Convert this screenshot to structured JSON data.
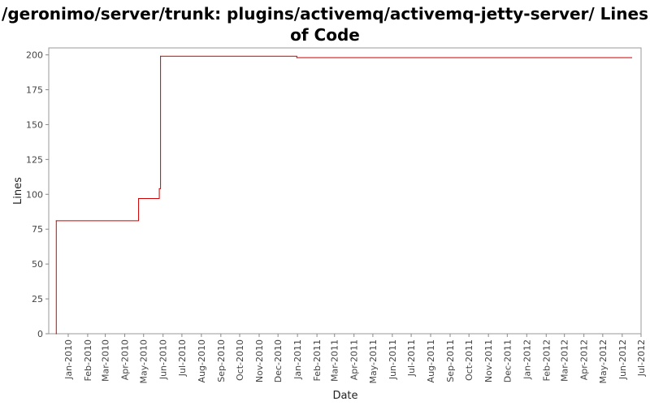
{
  "chart_data": {
    "type": "line",
    "line_style": "step",
    "title": "/geronimo/server/trunk: plugins/activemq/activemq-jetty-server/ Lines of Code",
    "xlabel": "Date",
    "ylabel": "Lines",
    "xlim": [
      "2009-12-01",
      "2012-07-01"
    ],
    "ylim": [
      0,
      205
    ],
    "x_ticks": [
      "Jan-2010",
      "Feb-2010",
      "Mar-2010",
      "Apr-2010",
      "May-2010",
      "Jun-2010",
      "Jul-2010",
      "Aug-2010",
      "Sep-2010",
      "Oct-2010",
      "Nov-2010",
      "Dec-2010",
      "Jan-2011",
      "Feb-2011",
      "Mar-2011",
      "Apr-2011",
      "May-2011",
      "Jun-2011",
      "Jul-2011",
      "Aug-2011",
      "Sep-2011",
      "Oct-2011",
      "Nov-2011",
      "Dec-2011",
      "Jan-2012",
      "Feb-2012",
      "Mar-2012",
      "Apr-2012",
      "May-2012",
      "Jun-2012",
      "Jul-2012"
    ],
    "y_ticks": [
      "0",
      "25",
      "50",
      "75",
      "100",
      "125",
      "150",
      "175",
      "200"
    ],
    "grid": false,
    "line_color": "#cc0000",
    "series": [
      {
        "name": "",
        "x": [
          "2009-12-13",
          "2009-12-13",
          "2010-04-23",
          "2010-05-26",
          "2010-05-28",
          "2010-12-31",
          "2012-06-16"
        ],
        "y": [
          0,
          81,
          97,
          104,
          199,
          198,
          198
        ]
      }
    ]
  }
}
